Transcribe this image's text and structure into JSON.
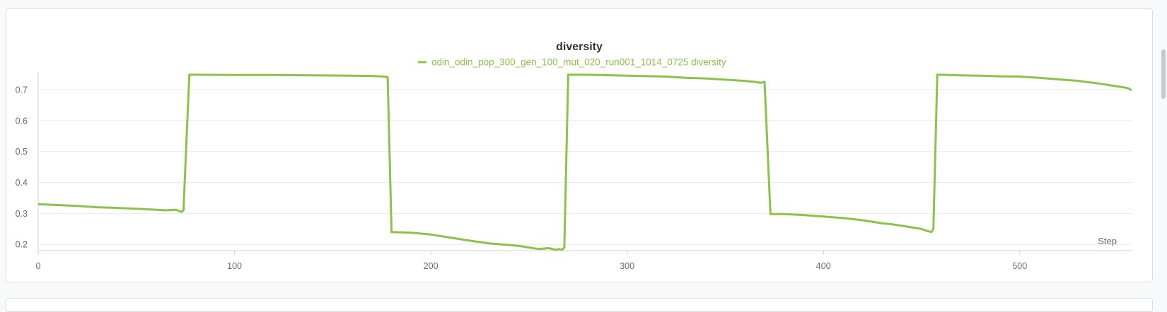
{
  "chart_data": {
    "type": "line",
    "title": "diversity",
    "xlabel": "Step",
    "ylabel": "",
    "xlim": [
      0,
      557
    ],
    "ylim": [
      0.18,
      0.75
    ],
    "x_ticks": [
      0,
      100,
      200,
      300,
      400,
      500
    ],
    "y_ticks": [
      0.2,
      0.3,
      0.4,
      0.5,
      0.6,
      0.7
    ],
    "grid": true,
    "legend_position": "top-center",
    "series": [
      {
        "name": "odin_odin_pop_300_gen_100_mut_020_run001_1014_0725 diversity",
        "color": "#8bc34a",
        "x": [
          0,
          10,
          20,
          30,
          40,
          50,
          60,
          65,
          70,
          73,
          74,
          77,
          80,
          100,
          120,
          140,
          160,
          170,
          174,
          176,
          178,
          180,
          190,
          200,
          210,
          220,
          230,
          240,
          245,
          250,
          255,
          260,
          264,
          265,
          267,
          268,
          270,
          280,
          300,
          320,
          330,
          340,
          350,
          360,
          365,
          368,
          370,
          373,
          380,
          390,
          400,
          410,
          420,
          430,
          435,
          440,
          445,
          450,
          452,
          455,
          456,
          458,
          460,
          470,
          480,
          490,
          500,
          510,
          520,
          530,
          540,
          545,
          550,
          555,
          557
        ],
        "y": [
          0.33,
          0.327,
          0.324,
          0.32,
          0.318,
          0.315,
          0.312,
          0.31,
          0.312,
          0.305,
          0.31,
          0.748,
          0.748,
          0.747,
          0.747,
          0.746,
          0.745,
          0.744,
          0.743,
          0.742,
          0.74,
          0.24,
          0.238,
          0.232,
          0.222,
          0.212,
          0.203,
          0.198,
          0.195,
          0.19,
          0.185,
          0.188,
          0.182,
          0.185,
          0.183,
          0.19,
          0.748,
          0.748,
          0.745,
          0.742,
          0.738,
          0.736,
          0.732,
          0.728,
          0.725,
          0.722,
          0.725,
          0.298,
          0.298,
          0.295,
          0.29,
          0.285,
          0.278,
          0.268,
          0.265,
          0.26,
          0.255,
          0.25,
          0.245,
          0.24,
          0.25,
          0.748,
          0.748,
          0.746,
          0.745,
          0.743,
          0.742,
          0.738,
          0.733,
          0.728,
          0.72,
          0.715,
          0.71,
          0.705,
          0.698
        ]
      }
    ]
  }
}
